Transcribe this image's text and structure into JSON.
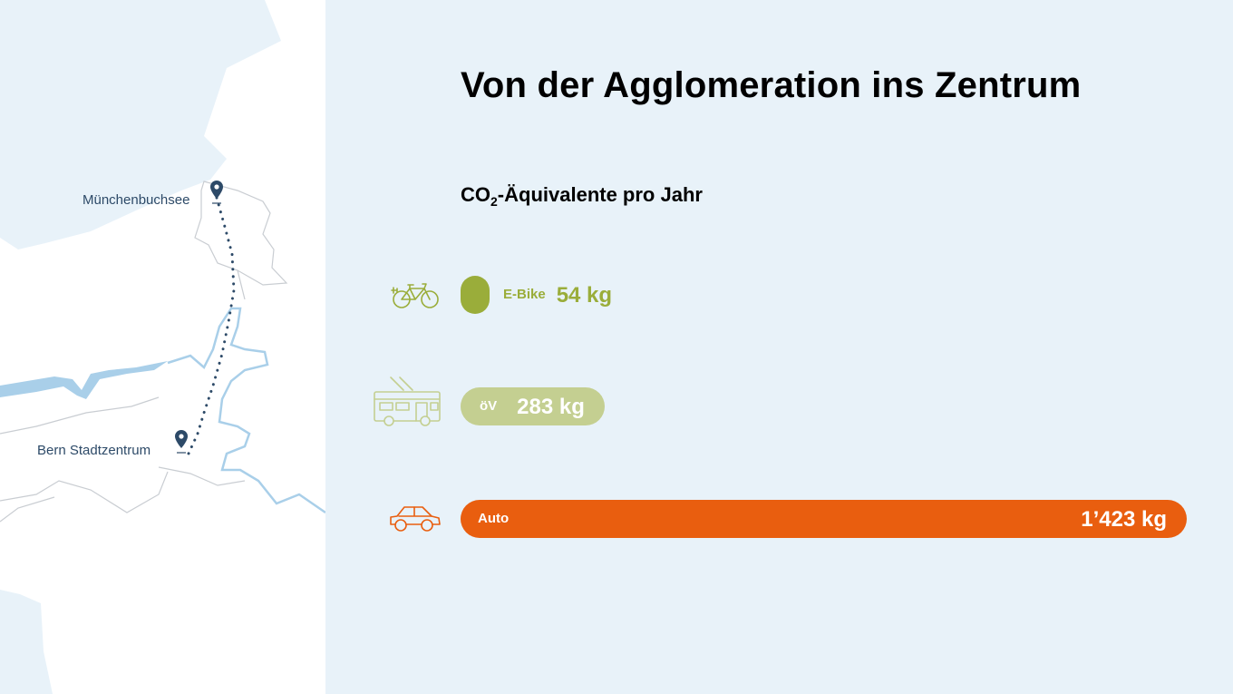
{
  "map": {
    "places": [
      {
        "name": "Münchenbuchsee"
      },
      {
        "name": "Bern Stadtzentrum"
      }
    ],
    "colors": {
      "land": "#e8f2f9",
      "water": "#a9cfe9",
      "border": "#c9cdd2",
      "route": "#2d4a68"
    }
  },
  "chart_data": {
    "type": "bar",
    "orientation": "horizontal",
    "title": "Von der Agglomeration ins Zentrum",
    "subtitle_parts": {
      "main": "CO",
      "sub": "2",
      "rest": "-Äquivalente pro Jahr"
    },
    "unit": "kg",
    "categories": [
      "E-Bike",
      "öV",
      "Auto"
    ],
    "values": [
      54,
      283,
      1423
    ],
    "value_labels": [
      "54 kg",
      "283 kg",
      "1’423 kg"
    ],
    "colors": [
      "#9aad3a",
      "#c4cf91",
      "#e95e0f"
    ],
    "icons": [
      "e-bike-icon",
      "trolleybus-icon",
      "car-icon"
    ],
    "xlim": [
      0,
      1423
    ],
    "legend": "none",
    "grid": false
  }
}
